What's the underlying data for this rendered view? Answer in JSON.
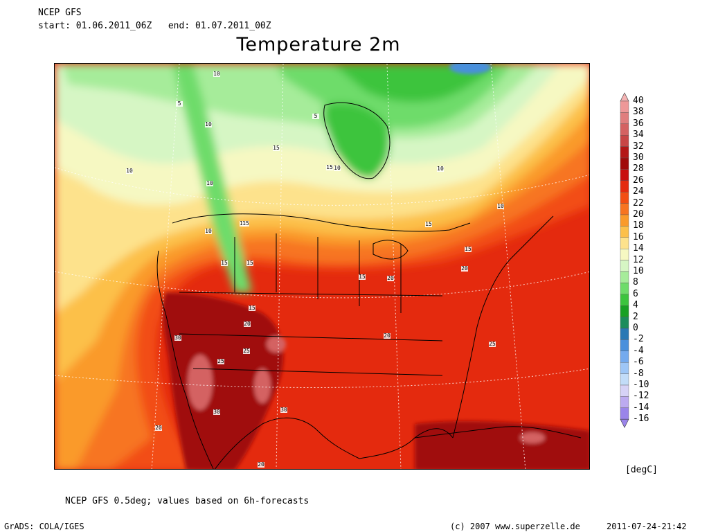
{
  "header": {
    "model": "NCEP GFS",
    "period": "start: 01.06.2011_06Z   end: 01.07.2011_00Z"
  },
  "title": "Temperature 2m",
  "map": {
    "contour_labels": [
      "10",
      "5",
      "10",
      "10",
      "10",
      "15",
      "15",
      "10",
      "15",
      "10",
      "10",
      "10",
      "5",
      "15",
      "15",
      "15",
      "15",
      "15",
      "20",
      "15",
      "20",
      "15",
      "20",
      "25",
      "20",
      "30",
      "25",
      "25",
      "30",
      "30",
      "20",
      "20",
      "20"
    ]
  },
  "colorbar": {
    "levels": [
      "40",
      "38",
      "36",
      "34",
      "32",
      "30",
      "28",
      "26",
      "24",
      "22",
      "20",
      "18",
      "16",
      "14",
      "12",
      "10",
      "8",
      "6",
      "4",
      "2",
      "0",
      "-2",
      "-4",
      "-6",
      "-8",
      "-10",
      "-12",
      "-14",
      "-16"
    ],
    "colors": [
      "#f4b3b3",
      "#ee9898",
      "#e07e7e",
      "#d46262",
      "#c84646",
      "#b41616",
      "#a00a0a",
      "#c80f0f",
      "#e42a0e",
      "#f24e12",
      "#f77420",
      "#fa9a2a",
      "#fcc04a",
      "#fde28c",
      "#f6f8c2",
      "#d6f6c4",
      "#a6ec9a",
      "#6edc6a",
      "#3cc43e",
      "#18a024",
      "#1c8c5c",
      "#2a78b4",
      "#4a90dc",
      "#74aaee",
      "#9ec6f6",
      "#c2dcf8",
      "#d6d2f6",
      "#bcaaf0",
      "#9a84ea"
    ],
    "units": "[degC]"
  },
  "footer": {
    "note": "NCEP GFS 0.5deg; values based on 6h-forecasts",
    "software": "GrADS: COLA/IGES",
    "copyright": "(c) 2007 www.superzelle.de",
    "timestamp": "2011-07-24-21:42"
  }
}
